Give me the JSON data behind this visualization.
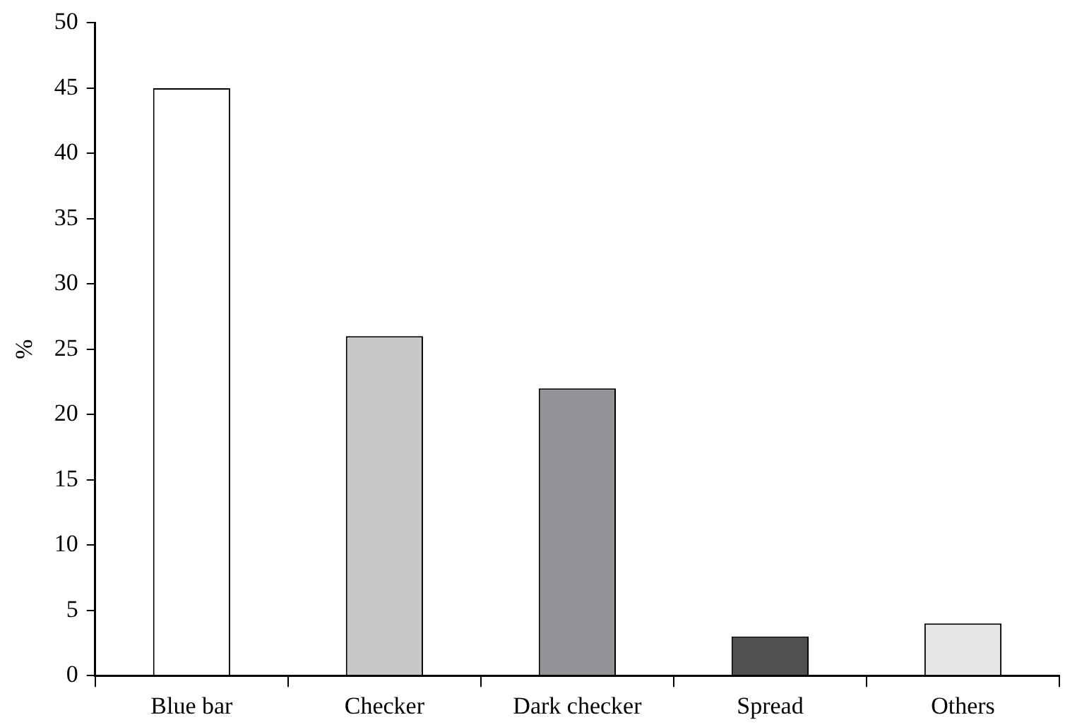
{
  "chart_data": {
    "type": "bar",
    "ylabel": "%",
    "categories": [
      "Blue bar",
      "Checker",
      "Dark checker",
      "Spread",
      "Others"
    ],
    "values": [
      45,
      26,
      22,
      3,
      4
    ],
    "colors": [
      "#ffffff",
      "#c8c8ca",
      "#939497",
      "#505052",
      "#e6e6e6"
    ],
    "ylim": [
      0,
      50
    ],
    "yticks": [
      0,
      5,
      10,
      15,
      20,
      25,
      30,
      35,
      40,
      45,
      50
    ],
    "grid": false,
    "legend": false
  }
}
